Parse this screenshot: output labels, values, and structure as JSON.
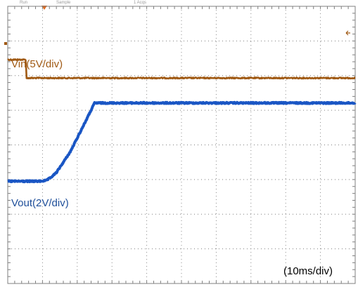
{
  "chart_data": {
    "type": "line",
    "title": "",
    "xlabel": "",
    "ylabel": "",
    "time_scale_label": "(10ms/div)",
    "x_unit": "ms",
    "xlim": [
      0,
      100
    ],
    "grid": true,
    "header_text": [
      "Run",
      "Sample",
      "1 Acqs"
    ],
    "series": [
      {
        "name": "Vin(5V/div)",
        "color": "#a05a14",
        "x": [
          0,
          5.2,
          5.4,
          100
        ],
        "divs": [
          6.46,
          6.46,
          5.93,
          5.93
        ]
      },
      {
        "name": "Vout(2V/div)",
        "color": "#1a56c4",
        "x": [
          0,
          9,
          11,
          12.3,
          14,
          18,
          20,
          22,
          23,
          25,
          100
        ],
        "divs": [
          2.95,
          2.95,
          2.97,
          3.05,
          3.2,
          3.8,
          4.2,
          4.6,
          4.8,
          5.21,
          5.21
        ]
      }
    ],
    "ylim_divs": [
      0,
      8
    ]
  }
}
